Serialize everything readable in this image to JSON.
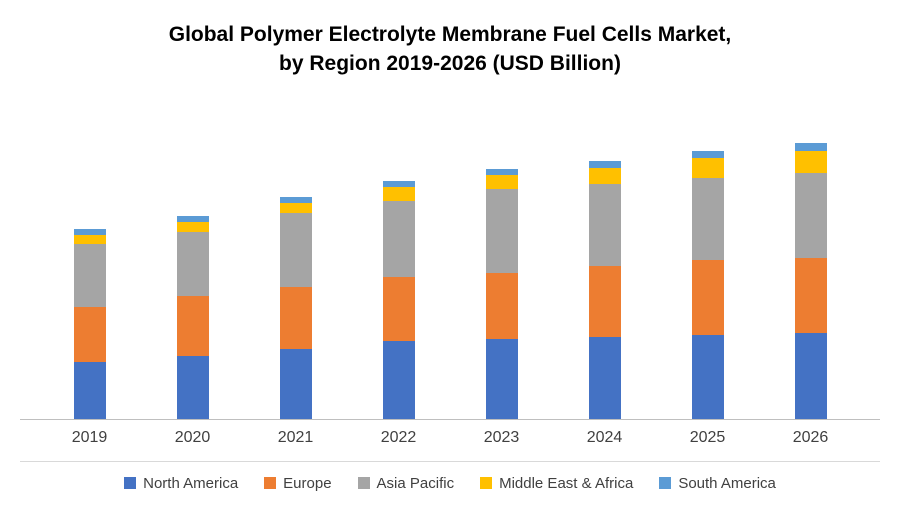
{
  "chart_data": {
    "type": "bar",
    "stacked": true,
    "title_line1": "Global Polymer Electrolyte Membrane Fuel Cells Market,",
    "title_line2": "by Region 2019-2026 (USD Billion)",
    "unit": "USD Billion",
    "categories": [
      "2019",
      "2020",
      "2021",
      "2022",
      "2023",
      "2024",
      "2025",
      "2026"
    ],
    "series": [
      {
        "name": "North America",
        "color": "#4472C4",
        "values": [
          0.57,
          0.63,
          0.7,
          0.78,
          0.8,
          0.82,
          0.84,
          0.86
        ]
      },
      {
        "name": "Europe",
        "color": "#ED7D31",
        "values": [
          0.55,
          0.6,
          0.62,
          0.64,
          0.66,
          0.71,
          0.75,
          0.75
        ]
      },
      {
        "name": "Asia Pacific",
        "color": "#A5A5A5",
        "values": [
          0.63,
          0.64,
          0.74,
          0.76,
          0.84,
          0.82,
          0.82,
          0.85
        ]
      },
      {
        "name": "Middle East & Africa",
        "color": "#FFC000",
        "values": [
          0.09,
          0.1,
          0.1,
          0.14,
          0.14,
          0.16,
          0.2,
          0.22
        ]
      },
      {
        "name": "South America",
        "color": "#5B9BD5",
        "values": [
          0.06,
          0.06,
          0.06,
          0.06,
          0.06,
          0.07,
          0.07,
          0.08
        ]
      }
    ],
    "xlabel": "",
    "ylabel": "",
    "ylim": [
      0,
      3.0
    ],
    "grid": false,
    "legend_position": "bottom"
  }
}
